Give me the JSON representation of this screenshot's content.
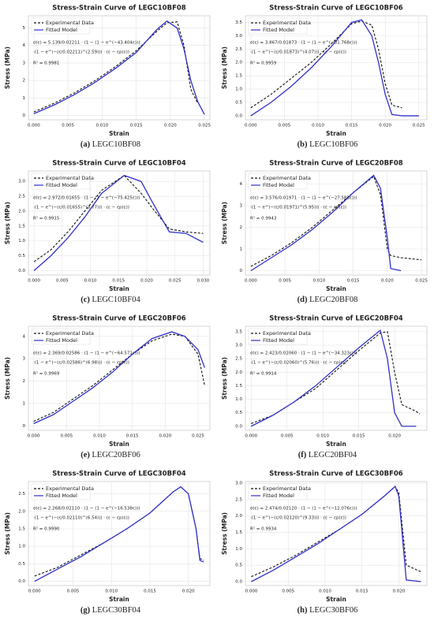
{
  "chart_data": [
    {
      "type": "line",
      "title": "Stress-Strain Curve of LEGC10BF08",
      "xlabel": "Strain",
      "ylabel": "Stress (MPa)",
      "caption_label": "(a)",
      "caption": "LEGC10BF08",
      "equation": [
        "σ(ε) = 5.139/0.02211 · (1 − (1 − e^(−43.404ε)))",
        "·(1 − e^(−(ε/0.02211)^(2.59))) · (ε − εp(ε))"
      ],
      "r2": "R² = 0.9981",
      "x": [
        0,
        0.003,
        0.006,
        0.009,
        0.012,
        0.015,
        0.018,
        0.0195,
        0.021,
        0.022,
        0.023,
        0.024,
        0.025
      ],
      "series": [
        {
          "name": "Experimental Data",
          "color": "#111111",
          "linestyle": "dashed",
          "values": [
            0.2,
            0.7,
            1.3,
            2.0,
            2.8,
            3.7,
            4.8,
            5.3,
            5.35,
            4.0,
            1.5,
            0.7,
            null
          ]
        },
        {
          "name": "Fitted Model",
          "color": "#3030c8",
          "linestyle": "solid",
          "values": [
            0.1,
            0.6,
            1.2,
            1.9,
            2.7,
            3.6,
            4.9,
            5.4,
            5.0,
            3.8,
            2.0,
            0.8,
            0.05
          ]
        }
      ],
      "xlim": [
        -0.0008,
        0.0258
      ],
      "ylim": [
        -0.25,
        5.7
      ],
      "xticks": [
        {
          "value": 0,
          "label": "0.000"
        },
        {
          "value": 0.005,
          "label": "0.005"
        },
        {
          "value": 0.01,
          "label": "0.010"
        },
        {
          "value": 0.015,
          "label": "0.015"
        },
        {
          "value": 0.02,
          "label": "0.020"
        },
        {
          "value": 0.025,
          "label": "0.025"
        }
      ],
      "yticks": [
        0,
        1,
        2,
        3,
        4,
        5
      ],
      "grid": true,
      "legend": "upper left"
    },
    {
      "type": "line",
      "title": "Stress-Strain Curve of LEGC10BF06",
      "xlabel": "Strain",
      "ylabel": "Stress (MPa)",
      "caption_label": "(b)",
      "caption": "LEGC10BF06",
      "equation": [
        "σ(ε) = 3.867/0.01873 · (1 − (1 − e^(−31.768ε)))",
        "·(1 − e^(−(ε/0.01873)^(4.07))) · (ε − εp(ε))"
      ],
      "r2": "R² = 0.9959",
      "x": [
        0,
        0.003,
        0.006,
        0.009,
        0.012,
        0.015,
        0.0165,
        0.018,
        0.019,
        0.02,
        0.021,
        0.0225,
        0.025
      ],
      "series": [
        {
          "name": "Experimental Data",
          "color": "#111111",
          "linestyle": "dashed",
          "values": [
            0.3,
            0.8,
            1.4,
            2.0,
            2.7,
            3.45,
            3.55,
            3.4,
            2.5,
            1.2,
            0.4,
            0.3,
            null
          ]
        },
        {
          "name": "Fitted Model",
          "color": "#3030c8",
          "linestyle": "solid",
          "values": [
            0.0,
            0.5,
            1.1,
            1.8,
            2.6,
            3.5,
            3.6,
            3.0,
            2.0,
            0.8,
            0.05,
            0.0,
            0.0
          ]
        }
      ],
      "xlim": [
        -0.0008,
        0.0262
      ],
      "ylim": [
        -0.15,
        3.75
      ],
      "xticks": [
        {
          "value": 0,
          "label": "0.000"
        },
        {
          "value": 0.005,
          "label": "0.005"
        },
        {
          "value": 0.01,
          "label": "0.010"
        },
        {
          "value": 0.015,
          "label": "0.015"
        },
        {
          "value": 0.02,
          "label": "0.020"
        },
        {
          "value": 0.025,
          "label": "0.025"
        }
      ],
      "yticks": [
        {
          "value": 0,
          "label": "0.0"
        },
        0.5,
        {
          "value": 1,
          "label": "1.0"
        },
        1.5,
        {
          "value": 2,
          "label": "2.0"
        },
        2.5,
        {
          "value": 3,
          "label": "3.0"
        },
        3.5
      ],
      "grid": true,
      "legend": "upper left"
    },
    {
      "type": "line",
      "title": "Stress-Strain Curve of LEGC10BF04",
      "xlabel": "Strain",
      "ylabel": "Stress (MPa)",
      "caption_label": "(c)",
      "caption": "LEGC10BF04",
      "equation": [
        "σ(ε) = 2.972/0.01655 · (1 − (1 − e^(−75.425ε)))",
        "·(1 − e^(−(ε/0.01655)^(3.77))) · (ε − εp(ε))"
      ],
      "r2": "R² = 0.9915",
      "x": [
        0,
        0.003,
        0.006,
        0.009,
        0.012,
        0.016,
        0.019,
        0.021,
        0.024,
        0.027,
        0.03
      ],
      "series": [
        {
          "name": "Experimental Data",
          "color": "#111111",
          "linestyle": "dashed",
          "values": [
            0.3,
            0.7,
            1.3,
            2.0,
            2.7,
            3.2,
            2.6,
            2.1,
            1.4,
            1.3,
            1.25
          ]
        },
        {
          "name": "Fitted Model",
          "color": "#3030c8",
          "linestyle": "solid",
          "values": [
            0.0,
            0.5,
            1.1,
            1.8,
            2.6,
            3.2,
            3.0,
            2.3,
            1.3,
            1.25,
            0.95
          ]
        }
      ],
      "xlim": [
        -0.001,
        0.0312
      ],
      "ylim": [
        -0.15,
        3.35
      ],
      "xticks": [
        {
          "value": 0,
          "label": "0.000"
        },
        {
          "value": 0.005,
          "label": "0.005"
        },
        {
          "value": 0.01,
          "label": "0.010"
        },
        {
          "value": 0.015,
          "label": "0.015"
        },
        {
          "value": 0.02,
          "label": "0.020"
        },
        {
          "value": 0.025,
          "label": "0.025"
        },
        {
          "value": 0.03,
          "label": "0.030"
        }
      ],
      "yticks": [
        {
          "value": 0,
          "label": "0.0"
        },
        0.5,
        {
          "value": 1,
          "label": "1.0"
        },
        1.5,
        {
          "value": 2,
          "label": "2.0"
        },
        2.5,
        {
          "value": 3,
          "label": "3.0"
        }
      ],
      "grid": true,
      "legend": "upper left"
    },
    {
      "type": "line",
      "title": "Stress-Strain Curve of LEGC20BF08",
      "xlabel": "Strain",
      "ylabel": "Stress (MPa)",
      "caption_label": "(d)",
      "caption": "LEGC20BF08",
      "equation": [
        "σ(ε) = 3.576/0.01971 · (1 − (1 − e^(−27.583ε)))",
        "·(1 − e^(−(ε/0.01971)^(5.95))) · (ε − εp(ε))"
      ],
      "r2": "R² = 0.9943",
      "x": [
        0,
        0.003,
        0.006,
        0.009,
        0.012,
        0.015,
        0.018,
        0.019,
        0.02,
        0.0205,
        0.022,
        0.025
      ],
      "series": [
        {
          "name": "Experimental Data",
          "color": "#111111",
          "linestyle": "dashed",
          "values": [
            0.2,
            0.7,
            1.3,
            2.0,
            2.8,
            3.6,
            4.35,
            3.5,
            1.0,
            0.7,
            0.6,
            0.5
          ]
        },
        {
          "name": "Fitted Model",
          "color": "#3030c8",
          "linestyle": "solid",
          "values": [
            0.0,
            0.6,
            1.2,
            1.9,
            2.7,
            3.6,
            4.4,
            3.8,
            1.5,
            0.1,
            0.0,
            null
          ]
        }
      ],
      "xlim": [
        -0.0008,
        0.0258
      ],
      "ylim": [
        -0.2,
        4.6
      ],
      "xticks": [
        {
          "value": 0,
          "label": "0.000"
        },
        {
          "value": 0.005,
          "label": "0.005"
        },
        {
          "value": 0.01,
          "label": "0.010"
        },
        {
          "value": 0.015,
          "label": "0.015"
        },
        {
          "value": 0.02,
          "label": "0.020"
        },
        {
          "value": 0.025,
          "label": "0.025"
        }
      ],
      "yticks": [
        0,
        1,
        2,
        3,
        4
      ],
      "grid": true,
      "legend": "upper left"
    },
    {
      "type": "line",
      "title": "Stress-Strain Curve of LEGC20BF06",
      "xlabel": "Strain",
      "ylabel": "Stress (MPa)",
      "caption_label": "(e)",
      "caption": "LEGC20BF06",
      "equation": [
        "σ(ε) = 2.369/0.02586 · (1 − (1 − e^(−64.571ε)))",
        "·(1 − e^(−(ε/0.02586)^(6.98))) · (ε − εp(ε))"
      ],
      "r2": "R² = 0.9969",
      "x": [
        0,
        0.003,
        0.006,
        0.009,
        0.012,
        0.015,
        0.018,
        0.021,
        0.023,
        0.025,
        0.026
      ],
      "series": [
        {
          "name": "Experimental Data",
          "color": "#111111",
          "linestyle": "dashed",
          "values": [
            0.2,
            0.6,
            1.2,
            1.8,
            2.5,
            3.2,
            3.8,
            4.1,
            4.0,
            3.2,
            1.8
          ]
        },
        {
          "name": "Fitted Model",
          "color": "#3030c8",
          "linestyle": "solid",
          "values": [
            0.1,
            0.5,
            1.1,
            1.7,
            2.4,
            3.2,
            3.9,
            4.2,
            4.0,
            3.4,
            2.6
          ]
        }
      ],
      "xlim": [
        -0.0008,
        0.0268
      ],
      "ylim": [
        -0.2,
        4.45
      ],
      "xticks": [
        {
          "value": 0,
          "label": "0.000"
        },
        {
          "value": 0.005,
          "label": "0.005"
        },
        {
          "value": 0.01,
          "label": "0.010"
        },
        {
          "value": 0.015,
          "label": "0.015"
        },
        {
          "value": 0.02,
          "label": "0.020"
        },
        {
          "value": 0.025,
          "label": "0.025"
        }
      ],
      "yticks": [
        0,
        1,
        2,
        3,
        4
      ],
      "grid": true,
      "legend": "upper left"
    },
    {
      "type": "line",
      "title": "Stress-Strain Curve of LEGC20BF04",
      "xlabel": "Strain",
      "ylabel": "Stress (MPa)",
      "caption_label": "(f)",
      "caption": "LEGC20BF04",
      "equation": [
        "σ(ε) = 2.423/0.02060 · (1 − (1 − e^(−34.323ε)))",
        "·(1 − e^(−(ε/0.02060)^(5.76))) · (ε − εp(ε))"
      ],
      "r2": "R² = 0.9914",
      "x": [
        0,
        0.003,
        0.006,
        0.009,
        0.012,
        0.015,
        0.018,
        0.019,
        0.02,
        0.021,
        0.023,
        0.0235
      ],
      "series": [
        {
          "name": "Experimental Data",
          "color": "#111111",
          "linestyle": "dashed",
          "values": [
            0.1,
            0.4,
            0.9,
            1.4,
            2.1,
            2.8,
            3.45,
            3.5,
            2.0,
            0.8,
            0.55,
            0.45
          ]
        },
        {
          "name": "Fitted Model",
          "color": "#3030c8",
          "linestyle": "solid",
          "values": [
            0.0,
            0.4,
            0.9,
            1.5,
            2.2,
            2.9,
            3.55,
            2.5,
            0.5,
            0.0,
            0.0,
            null
          ]
        }
      ],
      "xlim": [
        -0.0008,
        0.0245
      ],
      "ylim": [
        -0.15,
        3.7
      ],
      "xticks": [
        {
          "value": 0,
          "label": "0.000"
        },
        {
          "value": 0.005,
          "label": "0.005"
        },
        {
          "value": 0.01,
          "label": "0.010"
        },
        {
          "value": 0.015,
          "label": "0.015"
        },
        {
          "value": 0.02,
          "label": "0.020"
        }
      ],
      "yticks": [
        {
          "value": 0,
          "label": "0.0"
        },
        0.5,
        {
          "value": 1,
          "label": "1.0"
        },
        1.5,
        {
          "value": 2,
          "label": "2.0"
        },
        2.5,
        {
          "value": 3,
          "label": "3.0"
        },
        3.5
      ],
      "grid": true,
      "legend": "upper left"
    },
    {
      "type": "line",
      "title": "Stress-Strain Curve of LEGC30BF04",
      "xlabel": "Strain",
      "ylabel": "Stress (MPa)",
      "caption_label": "(g)",
      "caption": "LEGC30BF04",
      "equation": [
        "σ(ε) = 2.268/0.02110 · (1 − (1 − e^(−16.538ε)))",
        "·(1 − e^(−(ε/0.02110)^(6.54))) · (ε − εp(ε))"
      ],
      "r2": "R² = 0.9990",
      "x": [
        0,
        0.003,
        0.006,
        0.009,
        0.012,
        0.015,
        0.018,
        0.019,
        0.02,
        0.021,
        0.0215,
        0.022
      ],
      "series": [
        {
          "name": "Experimental Data",
          "color": "#111111",
          "linestyle": "dashed",
          "values": [
            0.15,
            0.4,
            0.75,
            1.1,
            1.5,
            1.95,
            2.55,
            2.7,
            2.5,
            1.5,
            0.65,
            0.6
          ]
        },
        {
          "name": "Fitted Model",
          "color": "#3030c8",
          "linestyle": "solid",
          "values": [
            0.0,
            0.35,
            0.7,
            1.1,
            1.5,
            1.95,
            2.55,
            2.7,
            2.5,
            1.5,
            0.6,
            0.55
          ]
        }
      ],
      "xlim": [
        -0.0008,
        0.0228
      ],
      "ylim": [
        -0.12,
        2.85
      ],
      "xticks": [
        {
          "value": 0,
          "label": "0.000"
        },
        {
          "value": 0.005,
          "label": "0.005"
        },
        {
          "value": 0.01,
          "label": "0.010"
        },
        {
          "value": 0.015,
          "label": "0.015"
        },
        {
          "value": 0.02,
          "label": "0.020"
        }
      ],
      "yticks": [
        {
          "value": 0,
          "label": "0.0"
        },
        0.5,
        {
          "value": 1,
          "label": "1.0"
        },
        1.5,
        {
          "value": 2,
          "label": "2.0"
        },
        2.5
      ],
      "grid": true,
      "legend": "upper left"
    },
    {
      "type": "line",
      "title": "Stress-Strain Curve of LEGC30BF06",
      "xlabel": "Strain",
      "ylabel": "Stress (MPa)",
      "caption_label": "(h)",
      "caption": "LEGC30BF06",
      "equation": [
        "σ(ε) = 2.474/0.02120 · (1 − (1 − e^(−12.076ε)))",
        "·(1 − e^(−(ε/0.02120)^(9.33))) · (ε − εp(ε))"
      ],
      "r2": "R² = 0.9934",
      "x": [
        0,
        0.003,
        0.006,
        0.009,
        0.012,
        0.015,
        0.018,
        0.0195,
        0.02,
        0.021,
        0.023
      ],
      "series": [
        {
          "name": "Experimental Data",
          "color": "#111111",
          "linestyle": "dashed",
          "values": [
            0.15,
            0.45,
            0.8,
            1.2,
            1.6,
            2.05,
            2.6,
            2.9,
            2.7,
            0.5,
            0.3
          ]
        },
        {
          "name": "Fitted Model",
          "color": "#3030c8",
          "linestyle": "solid",
          "values": [
            0.0,
            0.35,
            0.75,
            1.15,
            1.6,
            2.05,
            2.6,
            2.9,
            2.6,
            0.05,
            0.0
          ]
        }
      ],
      "xlim": [
        -0.0008,
        0.0238
      ],
      "ylim": [
        -0.12,
        3.05
      ],
      "xticks": [
        {
          "value": 0,
          "label": "0.000"
        },
        {
          "value": 0.005,
          "label": "0.005"
        },
        {
          "value": 0.01,
          "label": "0.010"
        },
        {
          "value": 0.015,
          "label": "0.015"
        },
        {
          "value": 0.02,
          "label": "0.020"
        }
      ],
      "yticks": [
        {
          "value": 0,
          "label": "0.0"
        },
        0.5,
        {
          "value": 1,
          "label": "1.0"
        },
        1.5,
        {
          "value": 2,
          "label": "2.0"
        },
        2.5,
        {
          "value": 3,
          "label": "3.0"
        }
      ],
      "grid": true,
      "legend": "upper left"
    }
  ]
}
